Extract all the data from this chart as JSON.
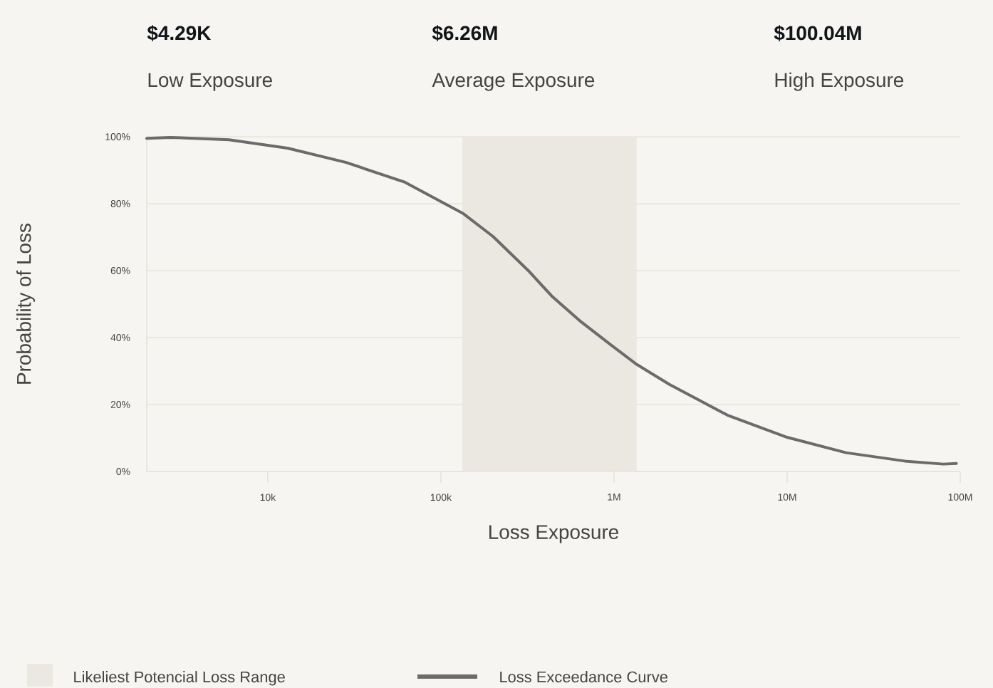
{
  "chart_data": {
    "type": "line",
    "xlabel": "Loss Exposure",
    "ylabel": "Probability of Loss",
    "annotations": [
      "$4.29K",
      "Low Exposure",
      "$6.26M",
      "Average Exposure",
      "$100.04M",
      "High Exposure"
    ],
    "log": "x",
    "xlim": [
      2000,
      100000000
    ],
    "ylim": [
      0,
      100
    ],
    "xticks": [
      {
        "value": 10000,
        "label": "10k"
      },
      {
        "value": 100000,
        "label": "100k"
      },
      {
        "value": 1000000,
        "label": "1M"
      },
      {
        "value": 10000000,
        "label": "10M"
      },
      {
        "value": 100000000,
        "label": "100M"
      }
    ],
    "yticks": [
      {
        "value": 0,
        "label": "0%"
      },
      {
        "value": 20,
        "label": "20%"
      },
      {
        "value": 40,
        "label": "40%"
      },
      {
        "value": 60,
        "label": "60%"
      },
      {
        "value": 80,
        "label": "80%"
      },
      {
        "value": 100,
        "label": "100%"
      }
    ],
    "grid": "y",
    "legend": "bottom left",
    "marker": "none",
    "line_style": "solid",
    "bands": [
      {
        "axis": "x",
        "from": 133000,
        "to": 1350000,
        "label": "Likeliest Potencial Loss Range",
        "color": "#ebe8e1"
      }
    ],
    "series": [
      {
        "name": "Loss Exceedance Curve",
        "color": "#6b6b6b",
        "x": [
          2000,
          2740,
          5970,
          13000,
          28400,
          62100,
          135000,
          200000,
          320000,
          437000,
          646000,
          955000,
          1350000,
          2090000,
          4570000,
          10000000,
          21900000,
          47900000,
          80000000,
          95000000
        ],
        "values": [
          99.5,
          99.8,
          99.1,
          96.6,
          92.3,
          86.4,
          77.0,
          70.2,
          60.0,
          52.4,
          44.7,
          37.9,
          32.0,
          26.0,
          16.7,
          10.2,
          5.6,
          3.1,
          2.2,
          2.4
        ]
      }
    ]
  }
}
